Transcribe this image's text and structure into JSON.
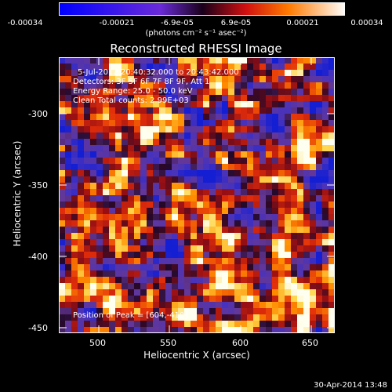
{
  "colorbar": {
    "tick_labels": [
      "-0.00034",
      "-0.00021",
      "-6.9e-05",
      "6.9e-05",
      "0.00021",
      "0.00034"
    ],
    "units": "(photons cm⁻² s⁻¹ asec⁻²)"
  },
  "plot": {
    "title": "Reconstructed RHESSI Image",
    "xlabel": "Heliocentric X (arcsec)",
    "ylabel": "Heliocentric Y (arcsec)",
    "x_ticks": [
      "500",
      "550",
      "600",
      "650"
    ],
    "y_ticks": [
      "-300",
      "-350",
      "-400",
      "-450"
    ],
    "annotations": {
      "time_range": "5-Jul-2012 20:40:32.000 to 20:43:42.000",
      "detectors": "Detectors: 3F 5F 6F 7F 8F 9F, Att 1",
      "energy_range": "Energy Range: 25.0 - 50.0 keV",
      "method_counts": "Clean    Total counts: 2.99E+03",
      "peak_position": "Position of Peak = [604,-410]"
    }
  },
  "chart_data": {
    "type": "heatmap",
    "title": "Reconstructed RHESSI Image",
    "xlabel": "Heliocentric X (arcsec)",
    "ylabel": "Heliocentric Y (arcsec)",
    "xlim": [
      472,
      666
    ],
    "ylim": [
      -452,
      -258
    ],
    "colorbar_range": [
      -0.00034,
      0.00034
    ],
    "peak_position": [
      604,
      -410
    ]
  },
  "footer": {
    "date": "30-Apr-2014 13:48"
  }
}
